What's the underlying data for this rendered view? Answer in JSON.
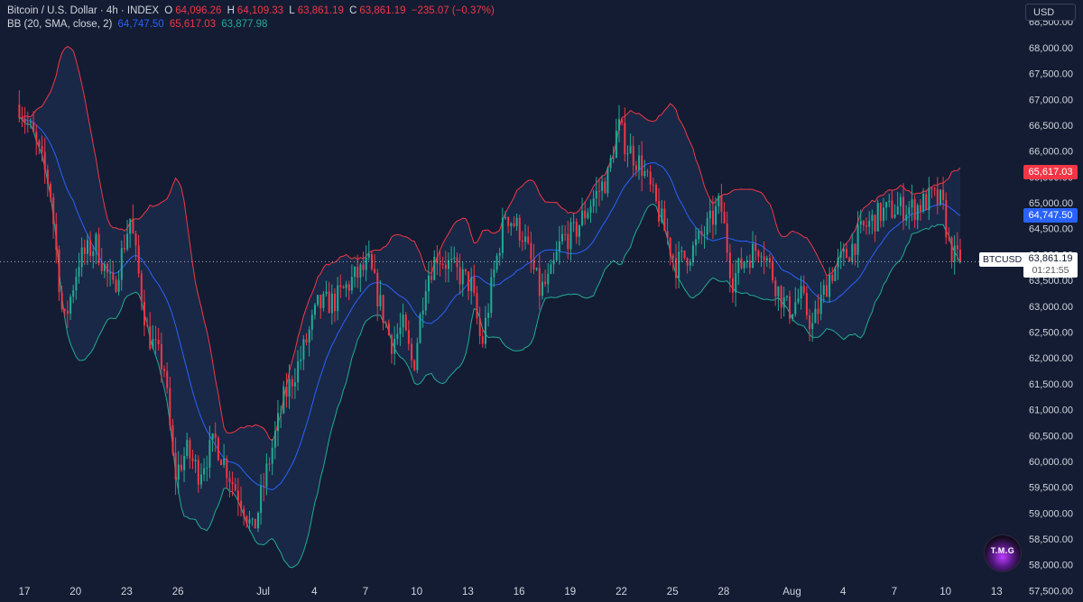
{
  "header": {
    "symbol_title": "Bitcoin / U.S. Dollar · 4h · INDEX",
    "open_label": "O",
    "open_value": "64,096.26",
    "high_label": "H",
    "high_value": "64,109.33",
    "low_label": "L",
    "low_value": "63,861.19",
    "close_label": "C",
    "close_value": "63,861.19",
    "change": "−235.07 (−0.37%)"
  },
  "indicator": {
    "name": "BB (20, SMA, close, 2)",
    "middle_value": "64,747.50",
    "upper_value": "65,617.03",
    "lower_value": "63,877.98"
  },
  "price_axis": {
    "currency": "USD",
    "upper_band_tag": "65,617.03",
    "middle_band_tag": "64,747.50",
    "last_price_tag": "63,861.19",
    "countdown": "01:21:55",
    "symbol_tag": "BTCUSD"
  },
  "logo_text": "T.M.G",
  "colors": {
    "background": "#131c33",
    "up": "#22ab94",
    "down": "#f23645",
    "upper_band": "#f23645",
    "middle_band": "#2962ff",
    "lower_band": "#22ab94",
    "band_fill": "#1b2a4a"
  },
  "chart_data": {
    "type": "candlestick",
    "timeframe": "4h",
    "y_ticks": [
      57500,
      58000,
      58500,
      59000,
      59500,
      60000,
      60500,
      61000,
      61500,
      62000,
      62500,
      63000,
      63500,
      64000,
      64500,
      65000,
      65500,
      66000,
      66500,
      67000,
      67500,
      68000,
      68500
    ],
    "y_tick_labels": [
      "57,500.00",
      "58,000.00",
      "58,500.00",
      "59,000.00",
      "59,500.00",
      "60,000.00",
      "60,500.00",
      "61,000.00",
      "61,500.00",
      "62,000.00",
      "62,500.00",
      "63,000.00",
      "63,500.00",
      "64,000.00",
      "64,500.00",
      "65,000.00",
      "65,500.00",
      "66,000.00",
      "66,500.00",
      "67,000.00",
      "67,500.00",
      "68,000.00",
      "68,500.00"
    ],
    "ylim": [
      57350,
      68800
    ],
    "x_ticks": [
      {
        "label": "17",
        "day": 0
      },
      {
        "label": "20",
        "day": 3
      },
      {
        "label": "23",
        "day": 6
      },
      {
        "label": "26",
        "day": 9
      },
      {
        "label": "Jul",
        "day": 14
      },
      {
        "label": "4",
        "day": 17
      },
      {
        "label": "7",
        "day": 20
      },
      {
        "label": "10",
        "day": 23
      },
      {
        "label": "13",
        "day": 26
      },
      {
        "label": "16",
        "day": 29
      },
      {
        "label": "19",
        "day": 32
      },
      {
        "label": "22",
        "day": 35
      },
      {
        "label": "25",
        "day": 38
      },
      {
        "label": "28",
        "day": 41
      },
      {
        "label": "Aug",
        "day": 45
      },
      {
        "label": "4",
        "day": 48
      },
      {
        "label": "7",
        "day": 51
      },
      {
        "label": "10",
        "day": 54
      },
      {
        "label": "13",
        "day": 57
      }
    ],
    "close_anchors": [
      [
        -0.3,
        66900
      ],
      [
        0.5,
        66300
      ],
      [
        1.5,
        65300
      ],
      [
        2.3,
        62600
      ],
      [
        3.2,
        63900
      ],
      [
        4.2,
        64200
      ],
      [
        5.2,
        63300
      ],
      [
        6.2,
        64700
      ],
      [
        7.2,
        62500
      ],
      [
        8.2,
        61800
      ],
      [
        8.8,
        59700
      ],
      [
        9.5,
        60200
      ],
      [
        10.2,
        59800
      ],
      [
        11.2,
        60400
      ],
      [
        12.2,
        59600
      ],
      [
        12.8,
        59200
      ],
      [
        13.4,
        58600
      ],
      [
        14.2,
        59800
      ],
      [
        15.2,
        61200
      ],
      [
        16.2,
        62000
      ],
      [
        17.2,
        63000
      ],
      [
        18.2,
        63100
      ],
      [
        19.2,
        63500
      ],
      [
        20.2,
        63800
      ],
      [
        20.8,
        63100
      ],
      [
        21.5,
        62300
      ],
      [
        22.2,
        62600
      ],
      [
        22.8,
        61800
      ],
      [
        23.5,
        63500
      ],
      [
        24.2,
        64000
      ],
      [
        25.2,
        63700
      ],
      [
        26.2,
        63400
      ],
      [
        26.8,
        62200
      ],
      [
        27.5,
        63600
      ],
      [
        28.2,
        64800
      ],
      [
        29.2,
        64400
      ],
      [
        30.2,
        63300
      ],
      [
        30.8,
        63500
      ],
      [
        31.5,
        64300
      ],
      [
        32.2,
        64400
      ],
      [
        33.2,
        65000
      ],
      [
        34.2,
        65500
      ],
      [
        34.8,
        66500
      ],
      [
        35.3,
        66100
      ],
      [
        36.2,
        65700
      ],
      [
        37.2,
        64800
      ],
      [
        38.2,
        63800
      ],
      [
        39.2,
        64100
      ],
      [
        40.2,
        64600
      ],
      [
        40.8,
        65000
      ],
      [
        41.5,
        63500
      ],
      [
        42.2,
        63900
      ],
      [
        43.2,
        64200
      ],
      [
        44.2,
        63300
      ],
      [
        44.8,
        62900
      ],
      [
        45.5,
        63200
      ],
      [
        46.2,
        62600
      ],
      [
        47.2,
        63600
      ],
      [
        48.2,
        64000
      ],
      [
        49.2,
        64500
      ],
      [
        50.2,
        64800
      ],
      [
        51.2,
        64900
      ],
      [
        52.2,
        64900
      ],
      [
        53.2,
        65100
      ],
      [
        53.8,
        65000
      ],
      [
        54.2,
        64200
      ],
      [
        54.6,
        63900
      ],
      [
        54.9,
        63861.19
      ]
    ],
    "first_day_x": 0,
    "last_candle_day": 54.9,
    "candle_interval_hours": 4,
    "bollinger": {
      "period": 20,
      "type": "SMA",
      "source": "close",
      "stddev": 2
    }
  }
}
